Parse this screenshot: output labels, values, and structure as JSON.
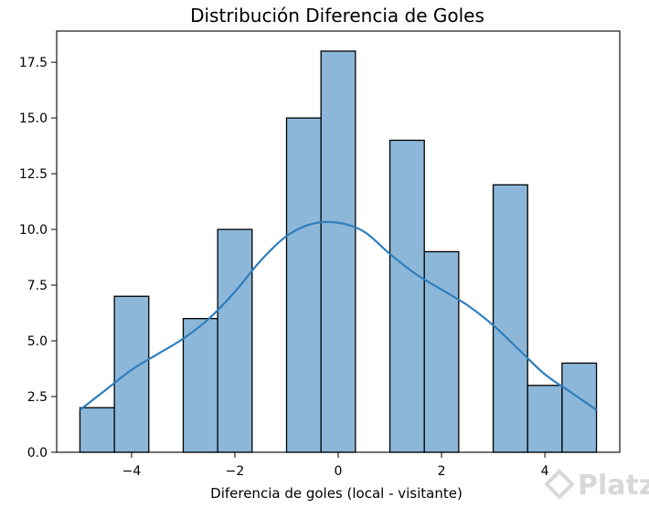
{
  "watermark": "Platzi",
  "colors": {
    "bar_fill": "#8cb7d9",
    "bar_edge": "#000000",
    "kde_line": "#2f7ebb",
    "axes_frame": "#000000",
    "watermark": "#d8d8d8"
  },
  "chart_data": {
    "type": "bar",
    "title": "Distribución Diferencia de Goles",
    "xlabel": "Diferencia de goles (local - visitante)",
    "ylabel": "",
    "xlim": [
      -5.45,
      5.45
    ],
    "ylim": [
      0,
      18.9
    ],
    "grid": false,
    "legend": "none",
    "x_ticks": [
      -4,
      -2,
      0,
      2,
      4
    ],
    "x_tick_labels": [
      "−4",
      "−2",
      "0",
      "2",
      "4"
    ],
    "y_ticks": [
      0,
      2.5,
      5,
      7.5,
      10,
      12.5,
      15,
      17.5
    ],
    "y_tick_labels": [
      "0.0",
      "2.5",
      "5.0",
      "7.5",
      "10.0",
      "12.5",
      "15.0",
      "17.5"
    ],
    "bins": [
      {
        "x0": -5.0,
        "x1": -4.333,
        "count": 2
      },
      {
        "x0": -4.333,
        "x1": -3.667,
        "count": 7
      },
      {
        "x0": -3.667,
        "x1": -3.0,
        "count": 0
      },
      {
        "x0": -3.0,
        "x1": -2.333,
        "count": 6
      },
      {
        "x0": -2.333,
        "x1": -1.667,
        "count": 10
      },
      {
        "x0": -1.667,
        "x1": -1.0,
        "count": 0
      },
      {
        "x0": -1.0,
        "x1": -0.333,
        "count": 15
      },
      {
        "x0": -0.333,
        "x1": 0.333,
        "count": 18
      },
      {
        "x0": 0.333,
        "x1": 1.0,
        "count": 0
      },
      {
        "x0": 1.0,
        "x1": 1.667,
        "count": 14
      },
      {
        "x0": 1.667,
        "x1": 2.333,
        "count": 9
      },
      {
        "x0": 2.333,
        "x1": 3.0,
        "count": 0
      },
      {
        "x0": 3.0,
        "x1": 3.667,
        "count": 12
      },
      {
        "x0": 3.667,
        "x1": 4.333,
        "count": 3
      },
      {
        "x0": 4.333,
        "x1": 5.0,
        "count": 4
      }
    ],
    "kde": {
      "x": [
        -5.0,
        -4.5,
        -4.0,
        -3.5,
        -3.0,
        -2.5,
        -2.0,
        -1.5,
        -1.0,
        -0.5,
        0.0,
        0.5,
        1.0,
        1.5,
        2.0,
        2.5,
        3.0,
        3.5,
        4.0,
        4.5,
        5.0
      ],
      "y": [
        1.9,
        2.8,
        3.7,
        4.4,
        5.1,
        6.0,
        7.2,
        8.6,
        9.7,
        10.25,
        10.3,
        9.9,
        8.9,
        8.0,
        7.3,
        6.6,
        5.7,
        4.6,
        3.5,
        2.7,
        1.9
      ]
    }
  }
}
